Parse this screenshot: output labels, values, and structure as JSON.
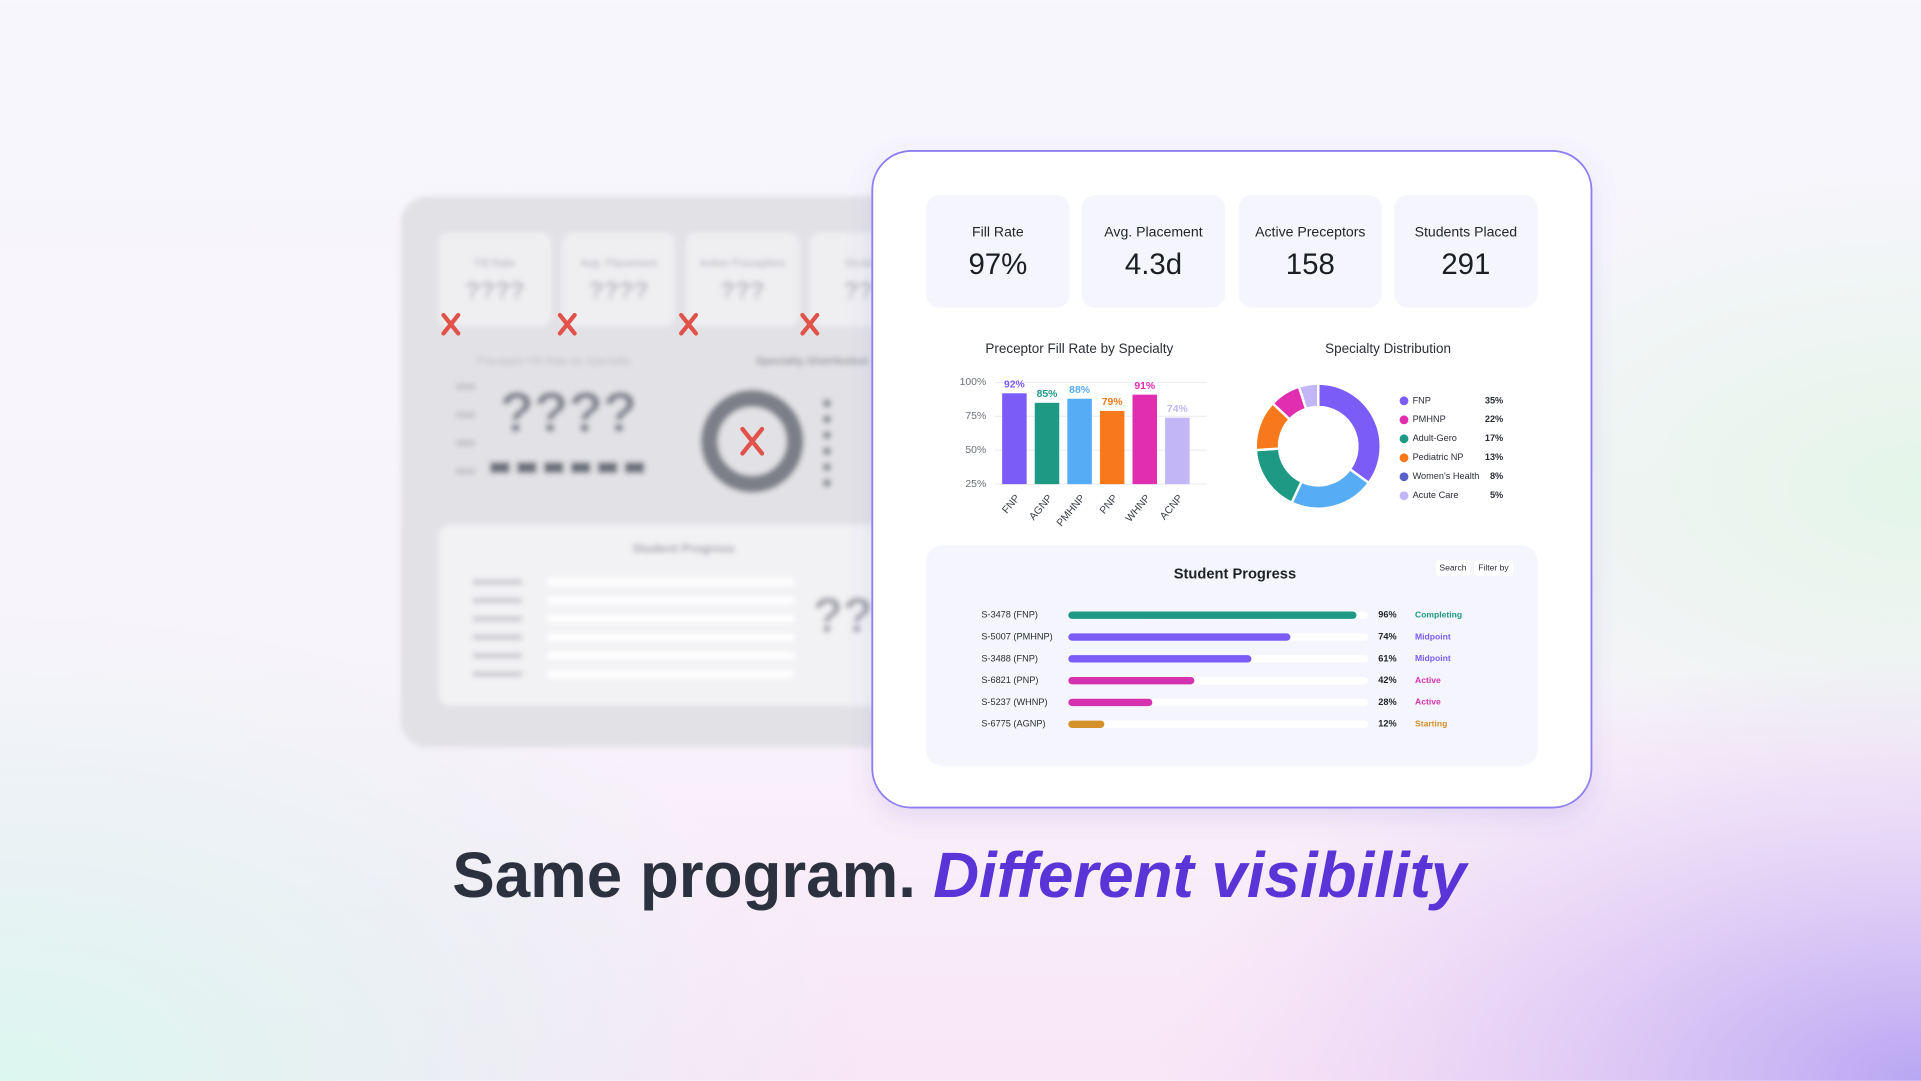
{
  "kpis": [
    {
      "label": "Fill Rate",
      "value": "97%"
    },
    {
      "label": "Avg. Placement",
      "value": "4.3d"
    },
    {
      "label": "Active Preceptors",
      "value": "158"
    },
    {
      "label": "Students Placed",
      "value": "291"
    }
  ],
  "chart_data": [
    {
      "type": "bar",
      "title": "Preceptor Fill Rate by Specialty",
      "categories": [
        "FNP",
        "AGNP",
        "PMHNP",
        "PNP",
        "WHNP",
        "ACNP"
      ],
      "values": [
        92,
        85,
        88,
        79,
        91,
        74
      ],
      "value_labels": [
        "92%",
        "85%",
        "88%",
        "79%",
        "91%",
        "74%"
      ],
      "colors": [
        "#7b5cf6",
        "#1e9a84",
        "#56acf5",
        "#f7791b",
        "#e12db0",
        "#c2b6f6"
      ],
      "ylim": [
        25,
        100
      ],
      "yticks": [
        {
          "value": 25,
          "label": "25%"
        },
        {
          "value": 50,
          "label": "50%"
        },
        {
          "value": 75,
          "label": "75%"
        },
        {
          "value": 100,
          "label": "100%"
        }
      ],
      "grid": true
    },
    {
      "type": "pie",
      "title": "Specialty Distribution",
      "categories": [
        "FNP",
        "PMHNP",
        "Adult-Gero",
        "Pediatric NP",
        "Women's Health",
        "Acute Care"
      ],
      "values": [
        35,
        22,
        17,
        13,
        8,
        5
      ],
      "value_labels": [
        "35%",
        "22%",
        "17%",
        "13%",
        "8%",
        "5%"
      ],
      "colors": [
        "#7b5cf6",
        "#56acf5",
        "#1e9a84",
        "#f7791b",
        "#e12db0",
        "#c2b6f6"
      ],
      "legend_colors": [
        "#7b5cf6",
        "#e12db0",
        "#1e9a84",
        "#f7791b",
        "#5a62c9",
        "#c2b6f6"
      ],
      "donut": true
    },
    {
      "type": "progress",
      "title": "Student Progress",
      "buttons": [
        "Search",
        "Filter by"
      ],
      "categories": [
        "S-3478 (FNP)",
        "S-5007 (PMHNP)",
        "S-3488 (FNP)",
        "S-6821 (PNP)",
        "S-5237 (WHNP)",
        "S-6775 (AGNP)"
      ],
      "values": [
        96,
        74,
        61,
        42,
        28,
        12
      ],
      "value_labels": [
        "96%",
        "74%",
        "61%",
        "42%",
        "28%",
        "12%"
      ],
      "statuses": [
        "Completing",
        "Midpoint",
        "Midpoint",
        "Active",
        "Active",
        "Starting"
      ],
      "colors": [
        "#1e9a84",
        "#7b5cf6",
        "#7b5cf6",
        "#d632b0",
        "#d632b0",
        "#d4902a"
      ],
      "xlim": [
        0,
        100
      ]
    }
  ],
  "blurred": {
    "kpi_labels": [
      "Fill Rate",
      "Avg. Placement",
      "Active Preceptors",
      "Students"
    ],
    "kpi_values": [
      "????",
      "????",
      "???",
      "???"
    ],
    "bar_title": "Preceptor Fill Rate by Specialty",
    "pie_title": "Specialty Distribution",
    "bar_placeholder": "????",
    "progress_title": "Student Progress",
    "progress_placeholder": "??"
  },
  "headline": {
    "part1": "Same program.",
    "part2": "Different visibility"
  }
}
